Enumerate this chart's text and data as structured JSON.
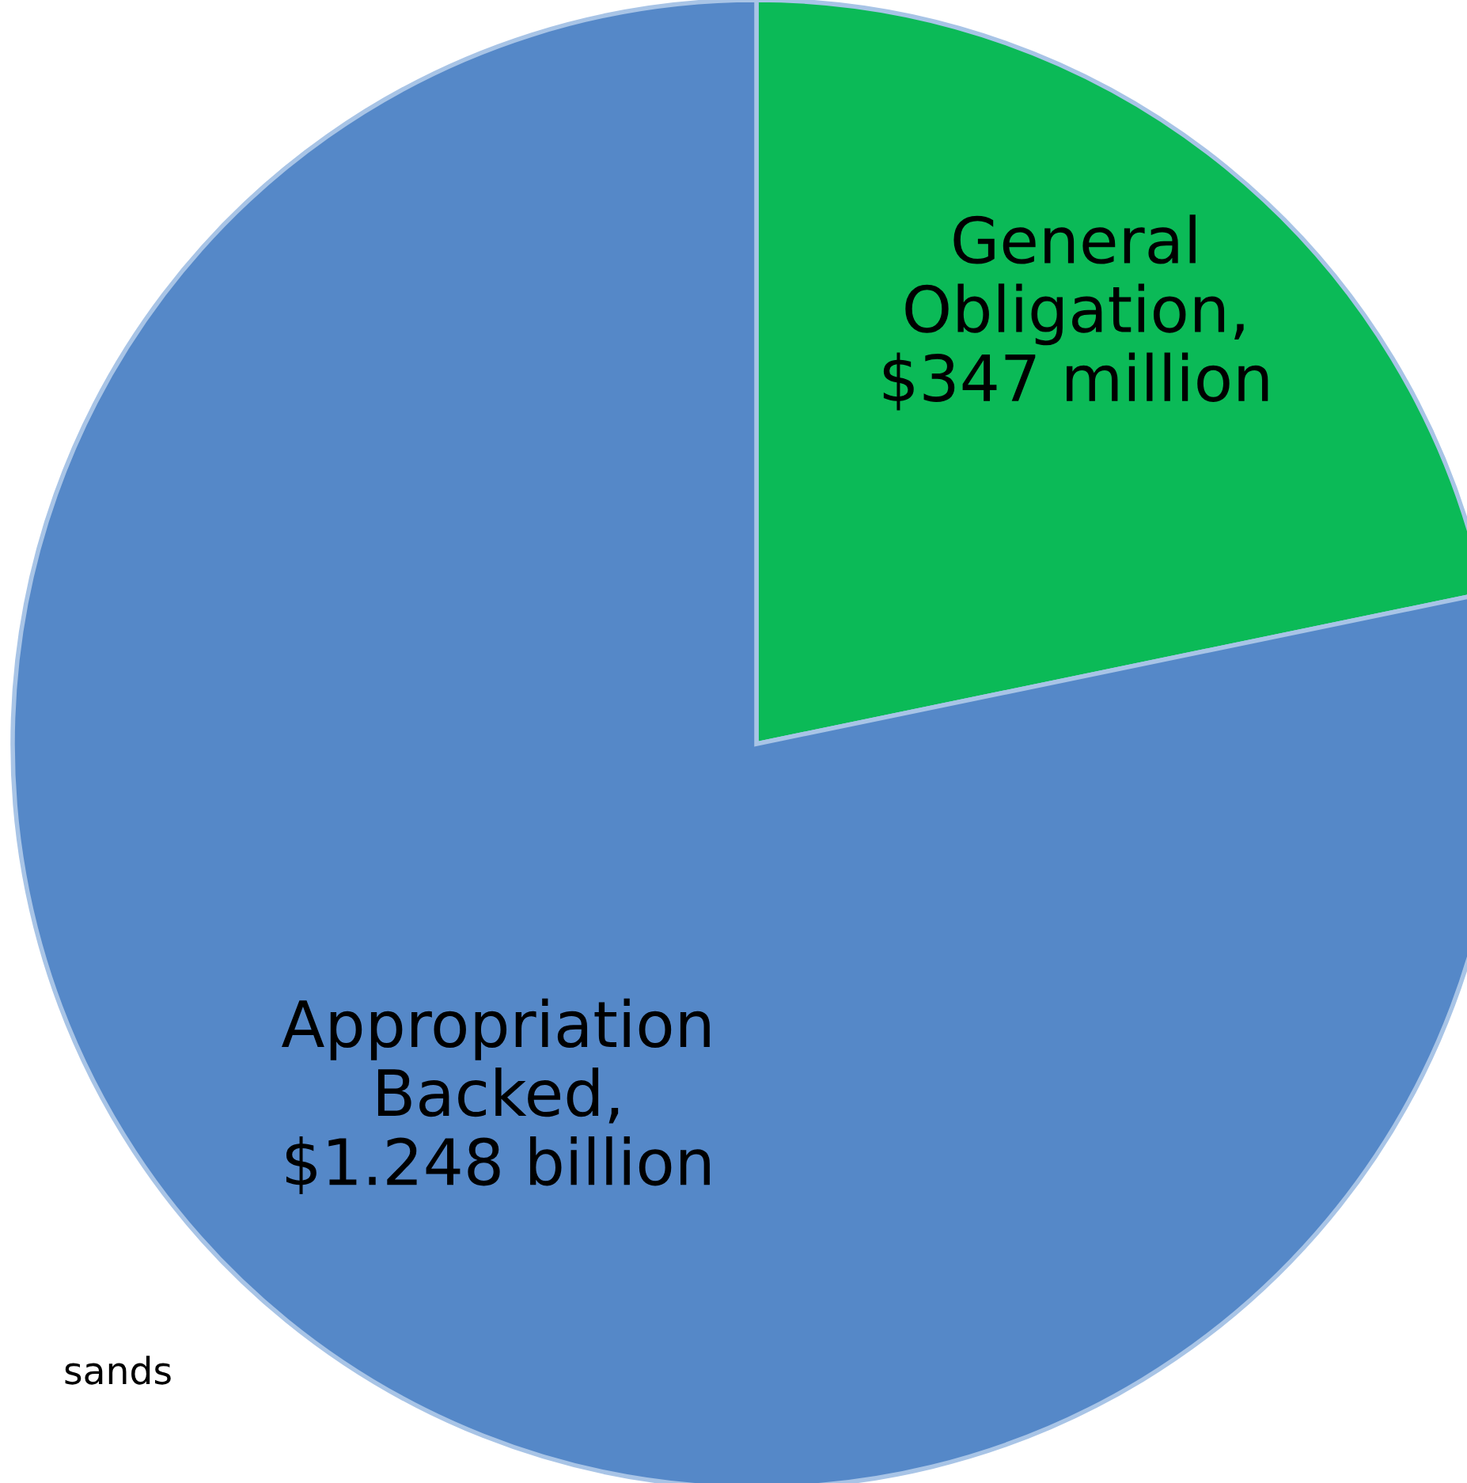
{
  "chart_data": {
    "type": "pie",
    "categories": [
      "General Obligation, $347 million",
      "Appropriation Backed, $1.248 billion"
    ],
    "values": [
      347,
      1248
    ],
    "colors": [
      "#0bba57",
      "#5588c8"
    ],
    "annotations": [
      "sands"
    ]
  }
}
